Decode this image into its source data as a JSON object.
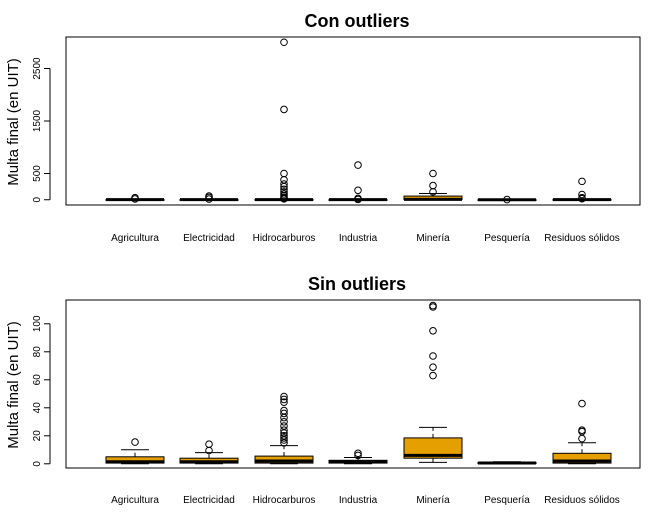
{
  "chart_data": [
    {
      "type": "boxplot",
      "title": "Con outliers",
      "xlabel": "",
      "ylabel": "Multa final (en UIT)",
      "ylim": [
        -100,
        3100
      ],
      "yticks": [
        0,
        500,
        1500,
        2500
      ],
      "categories": [
        "Agricultura",
        "Electricidad",
        "Hidrocarburos",
        "Industria",
        "Minería",
        "Pesquería",
        "Residuos sólidos"
      ],
      "fill_color": "#E69F00",
      "boxes": [
        {
          "q1": 0.5,
          "median": 1.5,
          "q3": 4,
          "lower": 0,
          "upper": 10,
          "outliers": [
            15,
            40
          ]
        },
        {
          "q1": 0.5,
          "median": 1.5,
          "q3": 3.5,
          "lower": 0,
          "upper": 8,
          "outliers": [
            14,
            45,
            70
          ]
        },
        {
          "q1": 0.5,
          "median": 2,
          "q3": 5,
          "lower": 0,
          "upper": 13,
          "outliers": [
            18,
            30,
            50,
            80,
            110,
            150,
            200,
            250,
            300,
            380,
            500,
            1720,
            3000
          ]
        },
        {
          "q1": 0.5,
          "median": 1.5,
          "q3": 3,
          "lower": 0,
          "upper": 5,
          "outliers": [
            7,
            25,
            180,
            660
          ]
        },
        {
          "q1": 4,
          "median": 6,
          "q3": 70,
          "lower": 0,
          "upper": 120,
          "outliers": [
            150,
            270,
            500
          ]
        },
        {
          "q1": 0.2,
          "median": 0.6,
          "q3": 1,
          "lower": 0,
          "upper": 1.5,
          "outliers": [
            3
          ]
        },
        {
          "q1": 0.5,
          "median": 2,
          "q3": 7,
          "lower": 0,
          "upper": 15,
          "outliers": [
            20,
            40,
            100,
            350
          ]
        }
      ]
    },
    {
      "type": "boxplot",
      "title": "Sin outliers",
      "xlabel": "",
      "ylabel": "Multa final (en UIT)",
      "ylim": [
        -3,
        117
      ],
      "yticks": [
        0,
        20,
        40,
        60,
        80,
        100
      ],
      "categories": [
        "Agricultura",
        "Electricidad",
        "Hidrocarburos",
        "Industria",
        "Minería",
        "Pesquería",
        "Residuos sólidos"
      ],
      "fill_color": "#E69F00",
      "boxes": [
        {
          "q1": 0.5,
          "median": 1.5,
          "q3": 5,
          "lower": 0,
          "upper": 10,
          "outliers": [
            15.5
          ]
        },
        {
          "q1": 0.5,
          "median": 1.5,
          "q3": 4,
          "lower": 0,
          "upper": 8,
          "outliers": [
            9.5,
            14
          ]
        },
        {
          "q1": 0.5,
          "median": 2,
          "q3": 5.5,
          "lower": 0,
          "upper": 13,
          "outliers": [
            15,
            17,
            18.5,
            20,
            22,
            24,
            27,
            30,
            33,
            36,
            38,
            44,
            46,
            48
          ]
        },
        {
          "q1": 0.5,
          "median": 1.5,
          "q3": 2.5,
          "lower": 0,
          "upper": 4.5,
          "outliers": [
            6,
            7.5
          ]
        },
        {
          "q1": 4,
          "median": 6,
          "q3": 18.5,
          "lower": 1,
          "upper": 26,
          "outliers": [
            63,
            69,
            77,
            95,
            112,
            113
          ]
        },
        {
          "q1": 0.2,
          "median": 0.6,
          "q3": 1,
          "lower": 0,
          "upper": 1.5,
          "outliers": []
        },
        {
          "q1": 0.5,
          "median": 2,
          "q3": 7.5,
          "lower": 0,
          "upper": 15,
          "outliers": [
            18,
            23,
            24,
            43
          ]
        }
      ]
    }
  ]
}
